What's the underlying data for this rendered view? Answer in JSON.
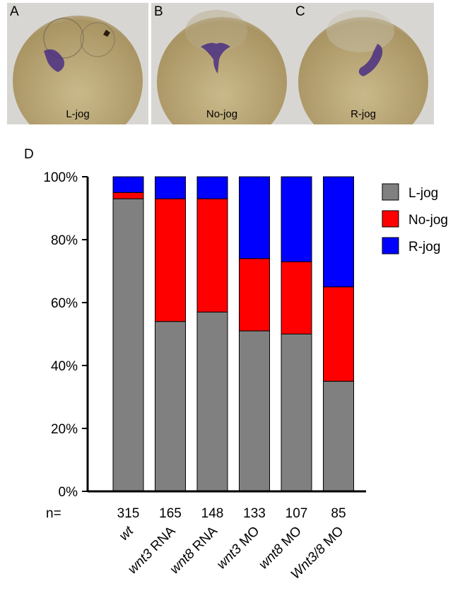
{
  "panels": [
    {
      "letter": "A",
      "label": "L-jog"
    },
    {
      "letter": "B",
      "label": "No-jog"
    },
    {
      "letter": "C",
      "label": "R-jog"
    }
  ],
  "chart_letter": "D",
  "n_prefix": "n=",
  "colors": {
    "l_jog": "#808080",
    "no_jog": "#ff0000",
    "r_jog": "#0000ff",
    "embryo": "#b8a572",
    "stain": "#4a2f82"
  },
  "chart_data": {
    "type": "bar",
    "stacked": true,
    "categories": [
      {
        "italic": "wt",
        "rest": ""
      },
      {
        "italic": "wnt3",
        "rest": " RNA"
      },
      {
        "italic": "wnt8",
        "rest": " RNA"
      },
      {
        "italic": "wnt3",
        "rest": " MO"
      },
      {
        "italic": "wnt8",
        "rest": " MO"
      },
      {
        "italic": "Wnt3/8",
        "rest": " MO"
      }
    ],
    "n_values": [
      "315",
      "165",
      "148",
      "133",
      "107",
      "85"
    ],
    "series": [
      {
        "name": "L-jog",
        "values": [
          93,
          54,
          57,
          51,
          50,
          35
        ]
      },
      {
        "name": "No-jog",
        "values": [
          2,
          39,
          36,
          23,
          23,
          30
        ]
      },
      {
        "name": "R-jog",
        "values": [
          5,
          7,
          7,
          26,
          27,
          35
        ]
      }
    ],
    "yticks": [
      "0%",
      "20%",
      "40%",
      "60%",
      "80%",
      "100%"
    ],
    "ylim": [
      0,
      100
    ],
    "legend": "right"
  }
}
